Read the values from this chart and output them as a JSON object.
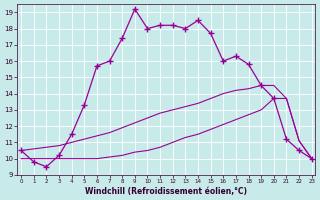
{
  "bg_color": "#c8eae8",
  "line_color": "#990099",
  "xlabel": "Windchill (Refroidissement éolien,°C)",
  "y_curve": [
    10.5,
    9.8,
    9.5,
    10.2,
    11.5,
    13.3,
    15.7,
    16.0,
    17.4,
    19.2,
    18.0,
    18.2,
    18.2,
    18.0,
    18.5,
    17.7,
    16.0,
    16.3,
    15.8,
    14.5,
    13.7,
    11.2,
    10.5,
    10.0
  ],
  "x_curve": [
    0,
    1,
    2,
    3,
    4,
    5,
    6,
    7,
    8,
    9,
    10,
    11,
    12,
    13,
    14,
    15,
    16,
    17,
    18,
    19,
    20,
    21,
    22,
    23
  ],
  "x_diag1": [
    0,
    1,
    2,
    3,
    4,
    5,
    6,
    7,
    8,
    9,
    10,
    11,
    12,
    13,
    14,
    15,
    16,
    17,
    18,
    19,
    20,
    21,
    22,
    23
  ],
  "y_diag1": [
    10.5,
    10.6,
    10.7,
    10.8,
    11.0,
    11.2,
    11.4,
    11.6,
    11.9,
    12.2,
    12.5,
    12.8,
    13.0,
    13.2,
    13.4,
    13.7,
    14.0,
    14.2,
    14.3,
    14.5,
    14.5,
    13.7,
    11.1,
    10.0
  ],
  "x_diag2": [
    0,
    1,
    2,
    3,
    4,
    5,
    6,
    7,
    8,
    9,
    10,
    11,
    12,
    13,
    14,
    15,
    16,
    17,
    18,
    19,
    20,
    21,
    22,
    23
  ],
  "y_diag2": [
    10.0,
    10.0,
    10.0,
    10.0,
    10.0,
    10.0,
    10.0,
    10.1,
    10.2,
    10.4,
    10.5,
    10.7,
    11.0,
    11.3,
    11.5,
    11.8,
    12.1,
    12.4,
    12.7,
    13.0,
    13.7,
    13.7,
    11.1,
    10.0
  ],
  "ylim": [
    9.0,
    19.5
  ],
  "xlim": [
    -0.3,
    23.3
  ],
  "yticks": [
    9,
    10,
    11,
    12,
    13,
    14,
    15,
    16,
    17,
    18,
    19
  ],
  "xticks": [
    0,
    1,
    2,
    3,
    4,
    5,
    6,
    7,
    8,
    9,
    10,
    11,
    12,
    13,
    14,
    15,
    16,
    17,
    18,
    19,
    20,
    21,
    22,
    23
  ]
}
